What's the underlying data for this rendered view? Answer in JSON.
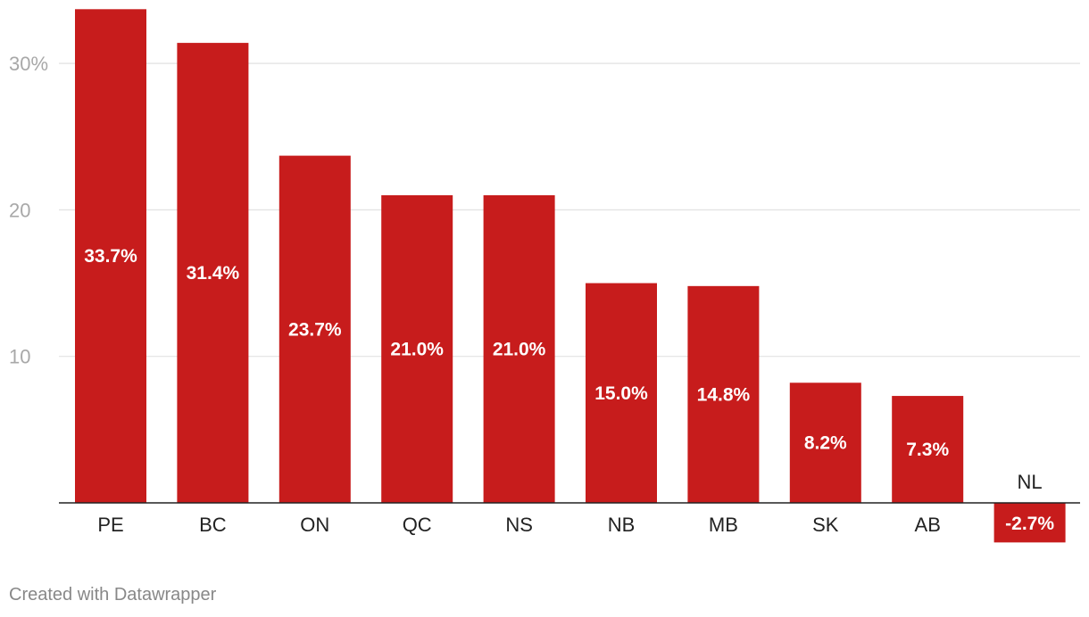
{
  "chart_data": {
    "type": "bar",
    "categories": [
      "PE",
      "BC",
      "ON",
      "QC",
      "NS",
      "NB",
      "MB",
      "SK",
      "AB",
      "NL"
    ],
    "values": [
      33.7,
      31.4,
      23.7,
      21.0,
      21.0,
      15.0,
      14.8,
      8.2,
      7.3,
      -2.7
    ],
    "value_labels": [
      "33.7%",
      "31.4%",
      "23.7%",
      "21.0%",
      "21.0%",
      "15.0%",
      "14.8%",
      "8.2%",
      "7.3%",
      "-2.7%"
    ],
    "title": "",
    "xlabel": "",
    "ylabel": "",
    "ylim": [
      -2.7,
      33.7
    ],
    "yticks": [
      10,
      20,
      30
    ],
    "ytick_labels": [
      "10",
      "20",
      "30%"
    ],
    "grid": true,
    "bar_color": "#c71c1c",
    "legend": "none"
  },
  "footer": {
    "credit": "Created with Datawrapper"
  }
}
